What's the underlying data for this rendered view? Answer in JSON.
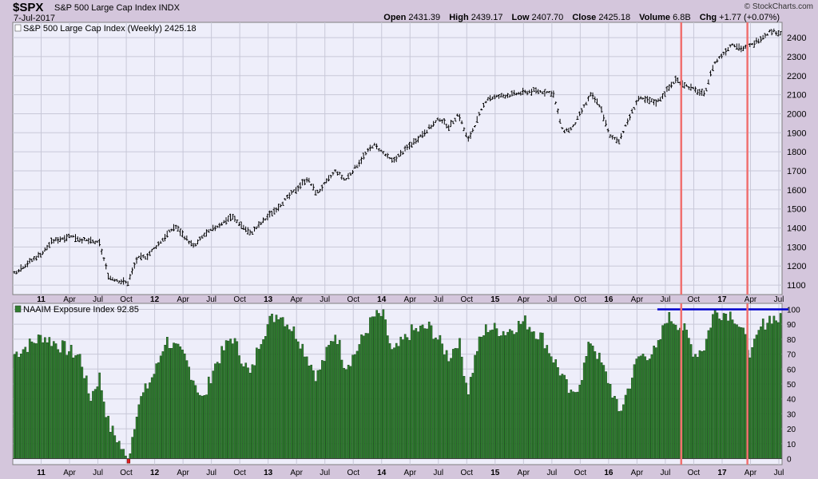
{
  "header": {
    "symbol": "$SPX",
    "name": "S&P 500 Large Cap Index INDX",
    "date": "7-Jul-2017",
    "credit": "© StockCharts.com",
    "quote": {
      "open_label": "Open",
      "open": "2431.39",
      "high_label": "High",
      "high": "2439.17",
      "low_label": "Low",
      "low": "2407.70",
      "close_label": "Close",
      "close": "2425.18",
      "volume_label": "Volume",
      "volume": "6.8B",
      "chg_label": "Chg",
      "chg": "+1.77 (+0.07%)"
    }
  },
  "colors": {
    "panel_bg": "#eeeefa",
    "page_bg": "#d4c6dc",
    "grid": "#c8c8d8",
    "bar_fill": "#2f7d2f",
    "bar_stroke": "#0b3b0b",
    "neg_bar": "#e02020",
    "price": "#000000",
    "marker_line": "#f07070",
    "level_line": "#0000cc"
  },
  "chart_data": [
    {
      "type": "ohlc",
      "label": "S&P 500 Large Cap Index (Weekly) 2425.18",
      "ylim": [
        1050,
        2480
      ],
      "y_ticks": [
        1100,
        1200,
        1300,
        1400,
        1500,
        1600,
        1700,
        1800,
        1900,
        2000,
        2100,
        2200,
        2300,
        2400
      ],
      "x_ticks": [
        "11",
        "Apr",
        "Jul",
        "Oct",
        "12",
        "Apr",
        "Jul",
        "Oct",
        "13",
        "Apr",
        "Jul",
        "Oct",
        "14",
        "Apr",
        "Jul",
        "Oct",
        "15",
        "Apr",
        "Jul",
        "Oct",
        "16",
        "Apr",
        "Jul",
        "Oct",
        "17",
        "Apr",
        "Jul"
      ],
      "x_range": [
        "2010-10",
        "2017-07"
      ],
      "anchors": [
        [
          "2010-10",
          1165
        ],
        [
          "2011-01",
          1271
        ],
        [
          "2011-02",
          1330
        ],
        [
          "2011-04",
          1360
        ],
        [
          "2011-05",
          1340
        ],
        [
          "2011-07",
          1320
        ],
        [
          "2011-08",
          1140
        ],
        [
          "2011-10",
          1110
        ],
        [
          "2011-11",
          1240
        ],
        [
          "2011-12",
          1250
        ],
        [
          "2012-03",
          1410
        ],
        [
          "2012-05",
          1300
        ],
        [
          "2012-06",
          1360
        ],
        [
          "2012-09",
          1460
        ],
        [
          "2012-11",
          1370
        ],
        [
          "2012-12",
          1420
        ],
        [
          "2013-02",
          1515
        ],
        [
          "2013-05",
          1660
        ],
        [
          "2013-06",
          1580
        ],
        [
          "2013-08",
          1700
        ],
        [
          "2013-09",
          1650
        ],
        [
          "2013-12",
          1840
        ],
        [
          "2014-02",
          1750
        ],
        [
          "2014-07",
          1975
        ],
        [
          "2014-08",
          1930
        ],
        [
          "2014-09",
          2000
        ],
        [
          "2014-10",
          1860
        ],
        [
          "2014-12",
          2080
        ],
        [
          "2015-05",
          2120
        ],
        [
          "2015-07",
          2110
        ],
        [
          "2015-08",
          1910
        ],
        [
          "2015-09",
          1920
        ],
        [
          "2015-11",
          2100
        ],
        [
          "2015-12",
          2040
        ],
        [
          "2016-01",
          1880
        ],
        [
          "2016-02",
          1860
        ],
        [
          "2016-04",
          2080
        ],
        [
          "2016-06",
          2060
        ],
        [
          "2016-08",
          2180
        ],
        [
          "2016-09",
          2150
        ],
        [
          "2016-11",
          2100
        ],
        [
          "2016-12",
          2260
        ],
        [
          "2017-02",
          2370
        ],
        [
          "2017-03",
          2340
        ],
        [
          "2017-04",
          2360
        ],
        [
          "2017-06",
          2435
        ],
        [
          "2017-07",
          2425
        ]
      ]
    },
    {
      "type": "bar",
      "label": "NAAIM Exposure Index 92.85",
      "ylim": [
        -4,
        104
      ],
      "y_ticks": [
        0,
        10,
        20,
        30,
        40,
        50,
        60,
        70,
        80,
        90,
        100
      ],
      "x_ticks": [
        "11",
        "Apr",
        "Jul",
        "Oct",
        "12",
        "Apr",
        "Jul",
        "Oct",
        "13",
        "Apr",
        "Jul",
        "Oct",
        "14",
        "Apr",
        "Jul",
        "Oct",
        "15",
        "Apr",
        "Jul",
        "Oct",
        "16",
        "Apr",
        "Jul",
        "Oct",
        "17",
        "Apr",
        "Jul"
      ],
      "x_range": [
        "2010-10",
        "2017-07"
      ],
      "anchors": [
        [
          "2010-10",
          70
        ],
        [
          "2010-12",
          78
        ],
        [
          "2011-01",
          82
        ],
        [
          "2011-03",
          75
        ],
        [
          "2011-05",
          68
        ],
        [
          "2011-06",
          40
        ],
        [
          "2011-07",
          55
        ],
        [
          "2011-08",
          22
        ],
        [
          "2011-09",
          12
        ],
        [
          "2011-10",
          -3
        ],
        [
          "2011-11",
          35
        ],
        [
          "2012-01",
          60
        ],
        [
          "2012-02",
          80
        ],
        [
          "2012-04",
          68
        ],
        [
          "2012-06",
          38
        ],
        [
          "2012-07",
          60
        ],
        [
          "2012-09",
          82
        ],
        [
          "2012-11",
          55
        ],
        [
          "2012-12",
          80
        ],
        [
          "2013-01",
          92
        ],
        [
          "2013-02",
          98
        ],
        [
          "2013-04",
          82
        ],
        [
          "2013-06",
          55
        ],
        [
          "2013-08",
          85
        ],
        [
          "2013-09",
          62
        ],
        [
          "2013-10",
          70
        ],
        [
          "2013-12",
          95
        ],
        [
          "2014-01",
          96
        ],
        [
          "2014-02",
          70
        ],
        [
          "2014-04",
          85
        ],
        [
          "2014-06",
          88
        ],
        [
          "2014-08",
          68
        ],
        [
          "2014-09",
          80
        ],
        [
          "2014-10",
          45
        ],
        [
          "2014-11",
          75
        ],
        [
          "2014-12",
          88
        ],
        [
          "2015-02",
          85
        ],
        [
          "2015-04",
          92
        ],
        [
          "2015-06",
          80
        ],
        [
          "2015-08",
          55
        ],
        [
          "2015-09",
          40
        ],
        [
          "2015-10",
          55
        ],
        [
          "2015-11",
          80
        ],
        [
          "2015-12",
          65
        ],
        [
          "2016-01",
          50
        ],
        [
          "2016-02",
          30
        ],
        [
          "2016-03",
          48
        ],
        [
          "2016-04",
          68
        ],
        [
          "2016-06",
          72
        ],
        [
          "2016-07",
          95
        ],
        [
          "2016-08",
          92
        ],
        [
          "2016-09",
          85
        ],
        [
          "2016-10",
          70
        ],
        [
          "2016-11",
          75
        ],
        [
          "2016-12",
          98
        ],
        [
          "2017-02",
          97
        ],
        [
          "2017-03",
          85
        ],
        [
          "2017-04",
          70
        ],
        [
          "2017-05",
          88
        ],
        [
          "2017-06",
          95
        ],
        [
          "2017-07",
          92.85
        ]
      ],
      "reference_line": 100
    }
  ],
  "markers": [
    "2016-08",
    "2017-03"
  ]
}
